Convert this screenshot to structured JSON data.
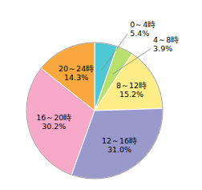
{
  "chart_data": {
    "type": "pie",
    "categories": [
      "0～4時",
      "4～8時",
      "8～12時",
      "12～16時",
      "16～20時",
      "20～24時"
    ],
    "values": [
      5.4,
      3.9,
      15.2,
      31.0,
      30.2,
      14.3
    ],
    "value_labels": [
      "5.4%",
      "3.9%",
      "15.2%",
      "31.0%",
      "30.2%",
      "14.3%"
    ],
    "colors": [
      "#4ec8d4",
      "#b8e06e",
      "#ffee88",
      "#9999cc",
      "#f8a8c8",
      "#f9a840"
    ],
    "data_labels": true
  }
}
